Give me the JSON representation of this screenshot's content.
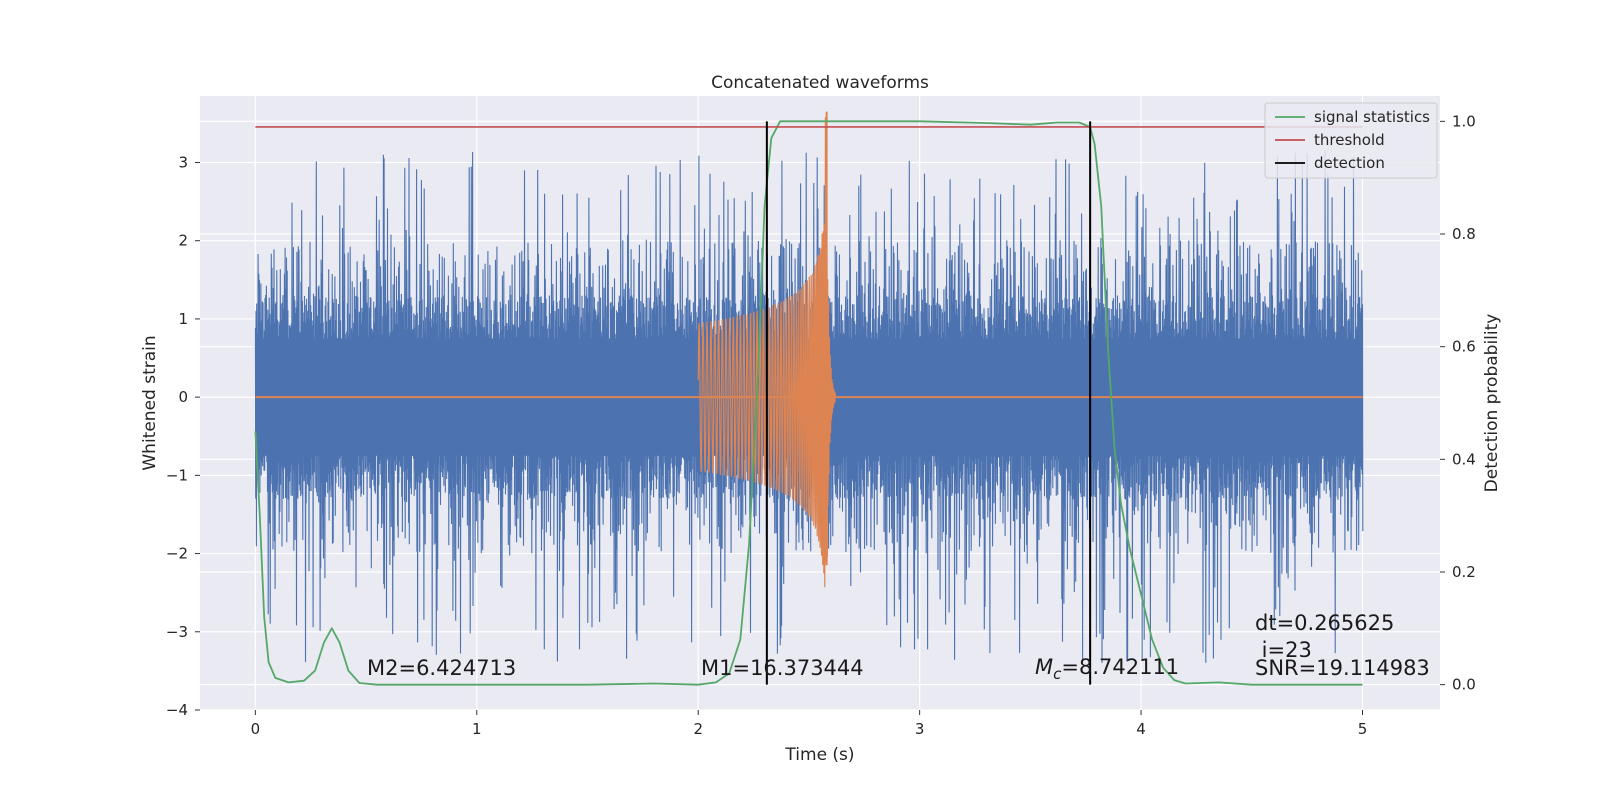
{
  "chart_data": {
    "type": "line",
    "title": "Concatenated waveforms",
    "xlabel": "Time (s)",
    "ylabel": "Whitened strain",
    "y2label": "Detection probability",
    "xlim": [
      -0.25,
      5.35
    ],
    "ylim": [
      -4.0,
      3.85
    ],
    "y2lim": [
      -0.045,
      1.045
    ],
    "xticks": [
      0,
      1,
      2,
      3,
      4,
      5
    ],
    "xtick_labels": [
      "0",
      "1",
      "2",
      "3",
      "4",
      "5"
    ],
    "yticks": [
      -4,
      -3,
      -2,
      -1,
      0,
      1,
      2,
      3
    ],
    "ytick_labels": [
      "−4",
      "−3",
      "−2",
      "−1",
      "0",
      "1",
      "2",
      "3"
    ],
    "y2ticks": [
      0.0,
      0.2,
      0.4,
      0.6,
      0.8,
      1.0
    ],
    "y2tick_labels": [
      "0.0",
      "0.2",
      "0.4",
      "0.6",
      "0.8",
      "1.0"
    ],
    "grid": true,
    "legend_position": "top-right",
    "colors": {
      "noise": "#4c72b0",
      "waveform": "#dd8452",
      "signal_statistics": "#55a868",
      "threshold": "#c44e52",
      "detection": "#000000",
      "background": "#eaeaf2",
      "grid": "#ffffff"
    },
    "series": [
      {
        "key": "noise",
        "axis": "left",
        "x_range": [
          0,
          5
        ],
        "typical_band": [
          -0.75,
          0.75
        ],
        "peak_range": [
          -3.4,
          3.2
        ]
      },
      {
        "key": "waveform",
        "axis": "left",
        "x_start": 2.0,
        "x_merger": 2.58,
        "x_end": 2.62,
        "peak": 3.65,
        "trough": -2.15
      },
      {
        "name": "signal statistics",
        "axis": "right",
        "points": [
          [
            0.0,
            0.45
          ],
          [
            0.02,
            0.3
          ],
          [
            0.04,
            0.12
          ],
          [
            0.06,
            0.04
          ],
          [
            0.09,
            0.012
          ],
          [
            0.15,
            0.004
          ],
          [
            0.22,
            0.007
          ],
          [
            0.27,
            0.025
          ],
          [
            0.31,
            0.075
          ],
          [
            0.345,
            0.1
          ],
          [
            0.38,
            0.075
          ],
          [
            0.42,
            0.025
          ],
          [
            0.47,
            0.003
          ],
          [
            0.55,
            0.0
          ],
          [
            1.0,
            0.0
          ],
          [
            1.5,
            0.0
          ],
          [
            1.8,
            0.002
          ],
          [
            2.0,
            0.0
          ],
          [
            2.08,
            0.004
          ],
          [
            2.14,
            0.02
          ],
          [
            2.19,
            0.08
          ],
          [
            2.23,
            0.25
          ],
          [
            2.27,
            0.55
          ],
          [
            2.3,
            0.85
          ],
          [
            2.33,
            0.97
          ],
          [
            2.37,
            1.0
          ],
          [
            3.0,
            1.0
          ],
          [
            3.3,
            0.997
          ],
          [
            3.5,
            0.994
          ],
          [
            3.62,
            0.998
          ],
          [
            3.72,
            0.998
          ],
          [
            3.77,
            0.99
          ],
          [
            3.79,
            0.96
          ],
          [
            3.82,
            0.85
          ],
          [
            3.85,
            0.6
          ],
          [
            3.88,
            0.42
          ],
          [
            3.91,
            0.32
          ],
          [
            3.95,
            0.24
          ],
          [
            4.0,
            0.16
          ],
          [
            4.05,
            0.08
          ],
          [
            4.1,
            0.03
          ],
          [
            4.15,
            0.008
          ],
          [
            4.2,
            0.002
          ],
          [
            4.35,
            0.004
          ],
          [
            4.5,
            0.0
          ],
          [
            5.0,
            0.0
          ]
        ]
      },
      {
        "name": "threshold",
        "axis": "right",
        "value": 0.99,
        "x_range": [
          0,
          5
        ]
      },
      {
        "name": "detection",
        "axis": "right",
        "x_values": [
          2.31,
          3.77
        ],
        "y_range": [
          0,
          1
        ]
      }
    ],
    "legend": [
      "signal statistics",
      "threshold",
      "detection"
    ],
    "annotations": {
      "m2": "M2=6.424713",
      "m1": "M1=16.373444",
      "mc_symbol": "M",
      "mc_sub": "c",
      "mc_value": "=8.742111",
      "dt": "dt=0.265625",
      "i": " i=23",
      "snr": "SNR=19.114983"
    }
  }
}
